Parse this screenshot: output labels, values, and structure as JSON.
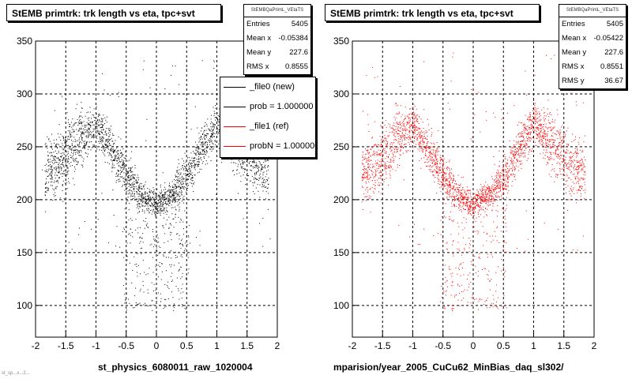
{
  "colors": {
    "series_new": "#000000",
    "series_ref": "#ff0000",
    "grid": "#000000"
  },
  "chart_data": [
    {
      "type": "scatter",
      "title": "StEMB primtrk: trk length vs eta, tpc+svt",
      "stats": {
        "header": "StEMBQaPrimL_VEtaTS",
        "rows": [
          {
            "label": "Entries",
            "value": "5405"
          },
          {
            "label": "Mean x",
            "value": "-0.05384"
          },
          {
            "label": "Mean y",
            "value": "227.6"
          },
          {
            "label": "RMS x",
            "value": "0.8555"
          }
        ]
      },
      "legend": {
        "placement": "right",
        "entries": [
          {
            "label": "_file0 (new)",
            "color": "#000000"
          },
          {
            "label": "prob = 1.000000",
            "color": "#000000"
          },
          {
            "label": "_file1 (ref)",
            "color": "#ff0000"
          },
          {
            "label": "probN = 1.000000",
            "color": "#ff0000"
          }
        ]
      },
      "xlabel": "st_physics_6080011_raw_1020004",
      "xlim": [
        -2,
        2
      ],
      "ylim": [
        70,
        350
      ],
      "xticks": [
        -2,
        -1.5,
        -1,
        -0.5,
        0,
        0.5,
        1,
        1.5,
        2
      ],
      "yticks": [
        100,
        150,
        200,
        250,
        300,
        350
      ],
      "grid": true,
      "marker_color": "#000000",
      "entries": 5405,
      "band": [
        [
          -1.85,
          225
        ],
        [
          -1.6,
          235
        ],
        [
          -1.3,
          255
        ],
        [
          -1.0,
          272
        ],
        [
          -0.75,
          248
        ],
        [
          -0.5,
          222
        ],
        [
          -0.25,
          205
        ],
        [
          0,
          196
        ],
        [
          0.25,
          205
        ],
        [
          0.5,
          222
        ],
        [
          0.75,
          248
        ],
        [
          1.0,
          272
        ],
        [
          1.3,
          255
        ],
        [
          1.6,
          235
        ],
        [
          1.85,
          225
        ]
      ]
    },
    {
      "type": "scatter",
      "title": "StEMB primtrk: trk length vs eta, tpc+svt",
      "stats": {
        "header": "StEMBQaPrimL_VEtaTS",
        "rows": [
          {
            "label": "Entries",
            "value": "5405"
          },
          {
            "label": "Mean x",
            "value": "-0.05422"
          },
          {
            "label": "Mean y",
            "value": "227.6"
          },
          {
            "label": "RMS x",
            "value": "0.8551"
          },
          {
            "label": "RMS y",
            "value": "36.67"
          }
        ]
      },
      "xlabel": "mparision/year_2005_CuCu62_MinBias_daq_sl302/",
      "xlim": [
        -2,
        2
      ],
      "ylim": [
        70,
        350
      ],
      "xticks": [
        -2,
        -1.5,
        -1,
        -0.5,
        0,
        0.5,
        1,
        1.5,
        2
      ],
      "yticks": [
        100,
        150,
        200,
        250,
        300,
        350
      ],
      "grid": true,
      "marker_color": "#ff0000",
      "entries": 5405,
      "band": [
        [
          -1.85,
          225
        ],
        [
          -1.6,
          235
        ],
        [
          -1.3,
          255
        ],
        [
          -1.0,
          272
        ],
        [
          -0.75,
          248
        ],
        [
          -0.5,
          222
        ],
        [
          -0.25,
          205
        ],
        [
          0,
          196
        ],
        [
          0.25,
          205
        ],
        [
          0.5,
          222
        ],
        [
          0.75,
          248
        ],
        [
          1.0,
          272
        ],
        [
          1.3,
          255
        ],
        [
          1.6,
          235
        ],
        [
          1.85,
          225
        ]
      ]
    }
  ],
  "footer_small": "st_sp...x...2...",
  "tick_format": [
    "-2",
    "-1.5",
    "-1",
    "-0.5",
    "0",
    "0.5",
    "1",
    "1.5",
    "2"
  ]
}
